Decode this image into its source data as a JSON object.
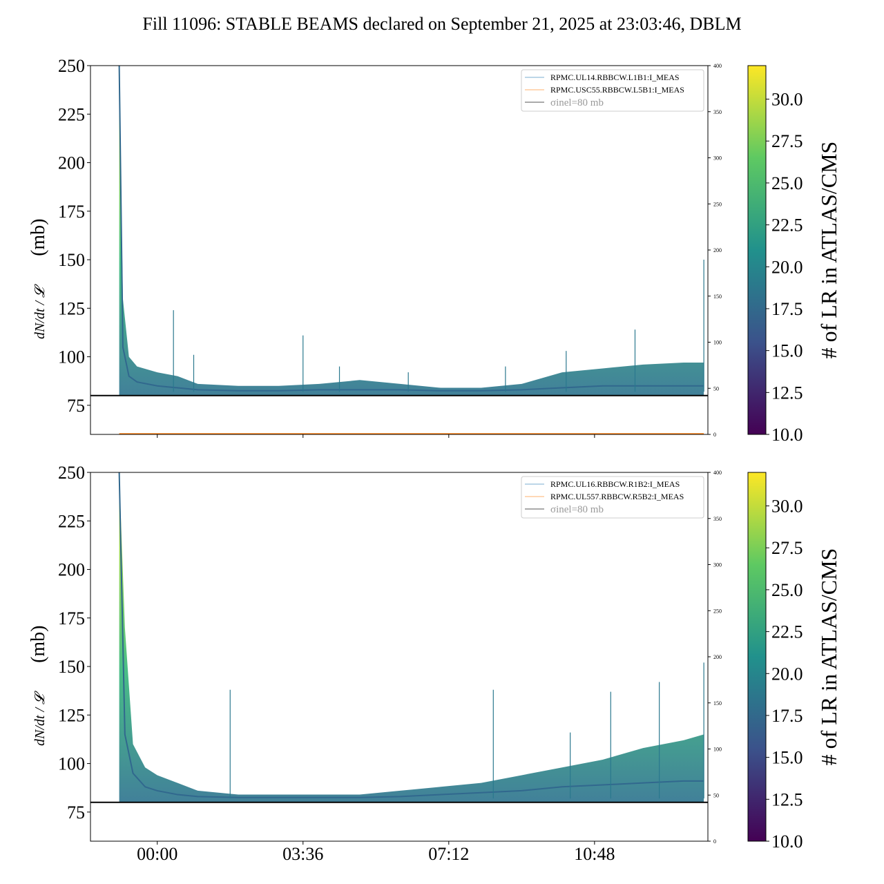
{
  "chart_data": {
    "type": "area",
    "title": "Fill 11096: STABLE BEAMS declared on September 21, 2025 at 23:03:46, DBLM",
    "x_ticks": [
      {
        "h": 0,
        "label": "00:00"
      },
      {
        "h": 3.6,
        "label": "03:36"
      },
      {
        "h": 7.2,
        "label": "07:12"
      },
      {
        "h": 10.8,
        "label": "10:48"
      }
    ],
    "xlim_hours": [
      -1.65,
      13.6
    ],
    "ylim": [
      60,
      250
    ],
    "y_ticks": [
      75,
      100,
      125,
      150,
      175,
      200,
      225,
      250
    ],
    "right_ylim": [
      0,
      400
    ],
    "right_ticks": [
      0,
      50,
      100,
      150,
      200,
      250,
      300,
      350,
      400
    ],
    "ylabel_frac": "dN/dt / 𝓛",
    "ylabel_unit": "(mb)",
    "sigma_inel_mb": 80,
    "sigma_label": "σinel=80 mb",
    "colorbar": {
      "label": "# of LR in ATLAS/CMS",
      "range": [
        10,
        32
      ],
      "ticks": [
        "10.0",
        "12.5",
        "15.0",
        "17.5",
        "20.0",
        "22.5",
        "25.0",
        "27.5",
        "30.0"
      ]
    },
    "panels": [
      {
        "legend": [
          "RPMC.UL14.RBBCW.L1B1:I_MEAS",
          "RPMC.USC55.RBBCW.L5B1:I_MEAS"
        ],
        "x": [
          -0.94,
          -0.85,
          -0.7,
          -0.5,
          0,
          0.5,
          1,
          2,
          3,
          4,
          5,
          6,
          7,
          8,
          9,
          10,
          11,
          12,
          13,
          13.5
        ],
        "median": [
          250,
          105,
          90,
          87,
          85,
          84,
          83,
          82.5,
          82.5,
          83,
          83,
          83,
          82.5,
          82.5,
          83,
          84,
          85,
          85,
          85,
          85
        ],
        "upper": [
          250,
          130,
          100,
          95,
          92,
          90,
          86,
          85,
          85,
          86,
          88,
          86,
          84,
          84,
          86,
          92,
          94,
          96,
          97,
          97
        ],
        "spikes": [
          [
            0.4,
            124
          ],
          [
            0.9,
            101
          ],
          [
            3.6,
            111
          ],
          [
            4.5,
            95
          ],
          [
            6.2,
            92
          ],
          [
            8.6,
            95
          ],
          [
            10.1,
            103
          ],
          [
            11.8,
            114
          ],
          [
            13.5,
            150
          ]
        ]
      },
      {
        "legend": [
          "RPMC.UL16.RBBCW.R1B2:I_MEAS",
          "RPMC.UL557.RBBCW.R5B2:I_MEAS"
        ],
        "x": [
          -0.94,
          -0.8,
          -0.6,
          -0.3,
          0,
          0.5,
          1,
          2,
          3,
          4,
          5,
          6,
          7,
          8,
          9,
          10,
          11,
          12,
          13,
          13.5
        ],
        "median": [
          250,
          115,
          95,
          88,
          86,
          84,
          83,
          82.5,
          82.5,
          82.5,
          82.5,
          83,
          84,
          85,
          86,
          88,
          89,
          90,
          91,
          91
        ],
        "upper": [
          250,
          170,
          110,
          98,
          94,
          90,
          86,
          84,
          84,
          84,
          84,
          86,
          88,
          90,
          94,
          98,
          102,
          108,
          112,
          115
        ],
        "spikes": [
          [
            1.8,
            138
          ],
          [
            8.3,
            138
          ],
          [
            10.2,
            116
          ],
          [
            11.2,
            137
          ],
          [
            12.4,
            142
          ],
          [
            13.5,
            152
          ]
        ]
      }
    ]
  }
}
